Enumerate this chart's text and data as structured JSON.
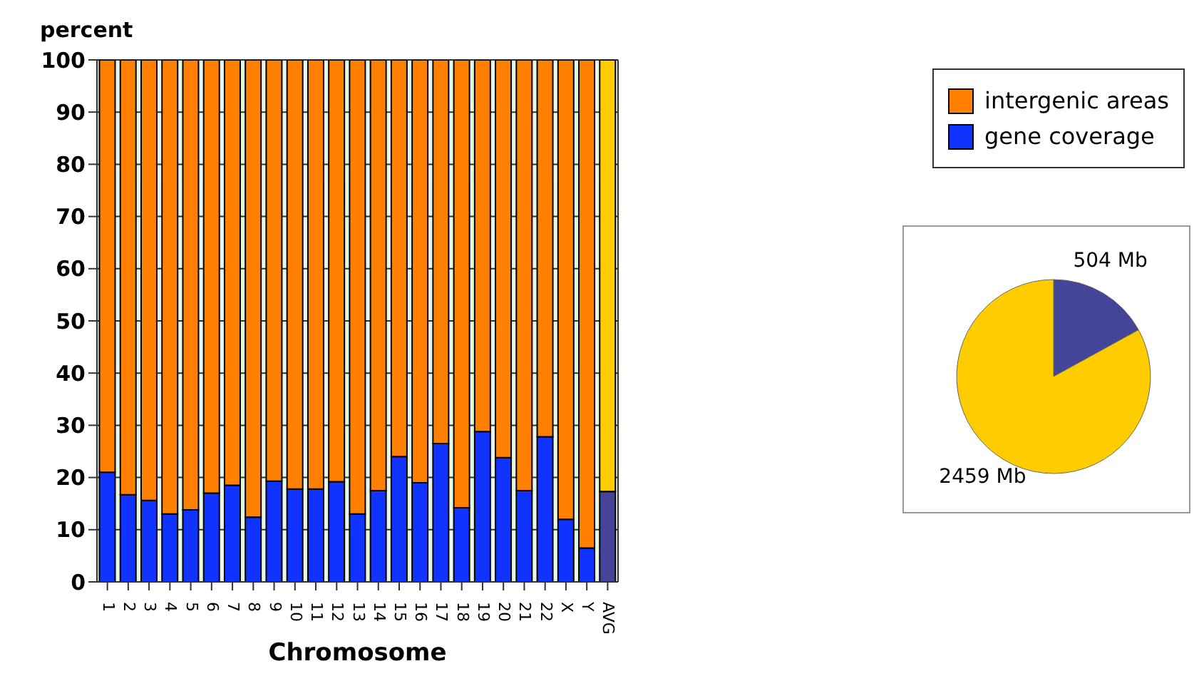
{
  "chart_data": [
    {
      "type": "bar",
      "stacked": true,
      "xlabel": "Chromosome",
      "ylabel": "percent",
      "categories": [
        "1",
        "2",
        "3",
        "4",
        "5",
        "6",
        "7",
        "8",
        "9",
        "10",
        "11",
        "12",
        "13",
        "14",
        "15",
        "16",
        "17",
        "18",
        "19",
        "20",
        "21",
        "22",
        "X",
        "Y",
        "AVG"
      ],
      "series": [
        {
          "name": "gene coverage",
          "color": "#1133ff",
          "colors": [
            "#1133ff",
            "#1133ff",
            "#1133ff",
            "#1133ff",
            "#1133ff",
            "#1133ff",
            "#1133ff",
            "#1133ff",
            "#1133ff",
            "#1133ff",
            "#1133ff",
            "#1133ff",
            "#1133ff",
            "#1133ff",
            "#1133ff",
            "#1133ff",
            "#1133ff",
            "#1133ff",
            "#1133ff",
            "#1133ff",
            "#1133ff",
            "#1133ff",
            "#1133ff",
            "#1133ff",
            "#444499"
          ],
          "values": [
            21,
            16.7,
            15.6,
            13,
            13.8,
            17,
            18.5,
            12.4,
            19.3,
            17.8,
            17.8,
            19.2,
            13,
            17.5,
            24,
            19,
            26.5,
            14.2,
            28.8,
            23.8,
            17.5,
            27.8,
            12,
            6.5,
            17.3
          ]
        },
        {
          "name": "intergenic areas",
          "color": "#ff7f00",
          "colors": [
            "#ff7f00",
            "#ff7f00",
            "#ff7f00",
            "#ff7f00",
            "#ff7f00",
            "#ff7f00",
            "#ff7f00",
            "#ff7f00",
            "#ff7f00",
            "#ff7f00",
            "#ff7f00",
            "#ff7f00",
            "#ff7f00",
            "#ff7f00",
            "#ff7f00",
            "#ff7f00",
            "#ff7f00",
            "#ff7f00",
            "#ff7f00",
            "#ff7f00",
            "#ff7f00",
            "#ff7f00",
            "#ff7f00",
            "#ff7f00",
            "#ffcc00"
          ],
          "values": [
            79,
            83.3,
            84.4,
            87,
            86.2,
            83,
            81.5,
            87.6,
            80.7,
            82.2,
            82.2,
            80.8,
            87,
            82.5,
            76,
            81,
            73.5,
            85.8,
            71.2,
            76.2,
            82.5,
            72.2,
            88,
            93.5,
            82.7
          ]
        }
      ],
      "ylim": [
        0,
        100
      ],
      "yticks": [
        0,
        10,
        20,
        30,
        40,
        50,
        60,
        70,
        80,
        90,
        100
      ],
      "grid": true,
      "legend": "right"
    },
    {
      "type": "pie",
      "categories": [
        null,
        null
      ],
      "values": [
        504,
        2459
      ],
      "colors": [
        "#444499",
        "#ffcc00"
      ],
      "value_labels": [
        "504 Mb",
        "2459 Mb"
      ]
    }
  ]
}
